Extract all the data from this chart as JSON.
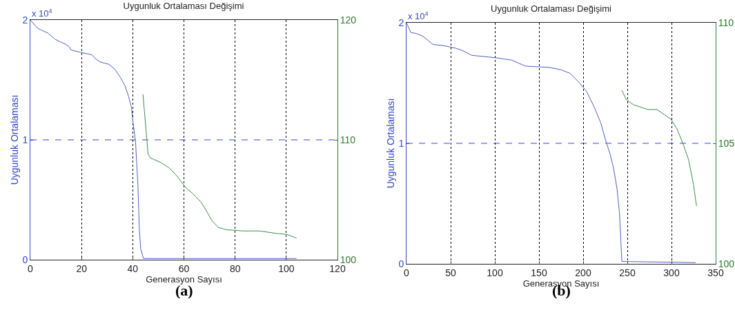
{
  "chart_data": [
    {
      "type": "line",
      "title": "Uygunluk Ortalaması Değişimi",
      "xlabel": "Generasyon Sayısı",
      "ylabel": "Uygunluk Ortalaması",
      "annotations": [
        "x 10$^{4}$",
        "(a)"
      ],
      "xlim": [
        0,
        120
      ],
      "xticks": [
        0,
        20,
        40,
        60,
        80,
        100,
        120
      ],
      "ylim": [
        0,
        2
      ],
      "yticks": [
        0,
        1,
        2
      ],
      "y2lim": [
        100,
        120
      ],
      "y2ticks": [
        100,
        110,
        120
      ],
      "grid": "x",
      "ref_lines": [
        {
          "axis": "y",
          "value": 1,
          "color": "#3346c8",
          "line_style": "dashed"
        }
      ],
      "series": [
        {
          "color": "#4f5fc4",
          "x": [
            0,
            2.4,
            3.8,
            6.9,
            9.6,
            11.4,
            13.6,
            15,
            15.9,
            19.5,
            24,
            25.3,
            27.2,
            30.7,
            33,
            35.2,
            37,
            38.4,
            39.5,
            40.2,
            41.1,
            42,
            42.6,
            43.1,
            44.2,
            104
          ],
          "values": [
            2.0,
            1.94,
            1.92,
            1.89,
            1.84,
            1.82,
            1.8,
            1.78,
            1.75,
            1.73,
            1.71,
            1.68,
            1.65,
            1.63,
            1.59,
            1.52,
            1.45,
            1.36,
            1.27,
            1.13,
            0.98,
            0.63,
            0.25,
            0.09,
            0.01,
            0.01
          ]
        },
        {
          "color": "#3a8f4a",
          "axis": "y2",
          "x": [
            44,
            46,
            46.9,
            51,
            54,
            57.2,
            60.4,
            63.5,
            66.7,
            69,
            70.8,
            73.4,
            76.6,
            83.3,
            89.6,
            95.9,
            100.4,
            104
          ],
          "values": [
            113.8,
            108.8,
            108.5,
            108.1,
            107.7,
            107.0,
            106.1,
            105.5,
            104.8,
            104.0,
            103.3,
            102.7,
            102.5,
            102.4,
            102.4,
            102.2,
            102.1,
            101.8
          ]
        }
      ]
    },
    {
      "type": "line",
      "title": "Uygunluk Ortalaması Değişimi",
      "xlabel": "Generasyon Sayısı",
      "ylabel": "Uygunluk Ortalaması",
      "annotations": [
        "x 10$^{4}$",
        "(b)"
      ],
      "xlim": [
        0,
        350
      ],
      "xticks": [
        0,
        50,
        100,
        150,
        200,
        250,
        300,
        350
      ],
      "ylim": [
        0,
        2
      ],
      "yticks": [
        0,
        1,
        2
      ],
      "y2lim": [
        100,
        110
      ],
      "y2ticks": [
        100,
        105,
        110
      ],
      "grid": "x",
      "ref_lines": [
        {
          "axis": "y",
          "value": 1,
          "color": "#3346c8",
          "line_style": "dashed"
        }
      ],
      "series": [
        {
          "color": "#4f5fc4",
          "x": [
            0,
            4.8,
            11.4,
            18,
            23.4,
            30,
            42,
            55.2,
            63.2,
            73.8,
            87.1,
            100.4,
            119,
            134.9,
            161.4,
            174.7,
            185.3,
            195.9,
            203.9,
            211.9,
            219.9,
            225.2,
            230.5,
            234.5,
            238.4,
            241.1,
            242.4,
            243.8,
            327.4
          ],
          "values": [
            2.0,
            1.92,
            1.91,
            1.89,
            1.86,
            1.82,
            1.81,
            1.79,
            1.77,
            1.73,
            1.72,
            1.71,
            1.69,
            1.64,
            1.63,
            1.61,
            1.58,
            1.5,
            1.43,
            1.31,
            1.17,
            1.03,
            0.91,
            0.79,
            0.62,
            0.42,
            0.23,
            0.02,
            0.01
          ]
        },
        {
          "color": "#3a8f4a",
          "axis": "y2",
          "x": [
            243.8,
            249,
            257,
            273,
            283.5,
            291.5,
            299.5,
            306.2,
            312.8,
            319.5,
            324.8,
            328.3
          ],
          "values": [
            107.2,
            106.8,
            106.6,
            106.4,
            106.4,
            106.2,
            106.0,
            105.6,
            105.0,
            104.3,
            103.3,
            102.4
          ]
        }
      ]
    }
  ]
}
